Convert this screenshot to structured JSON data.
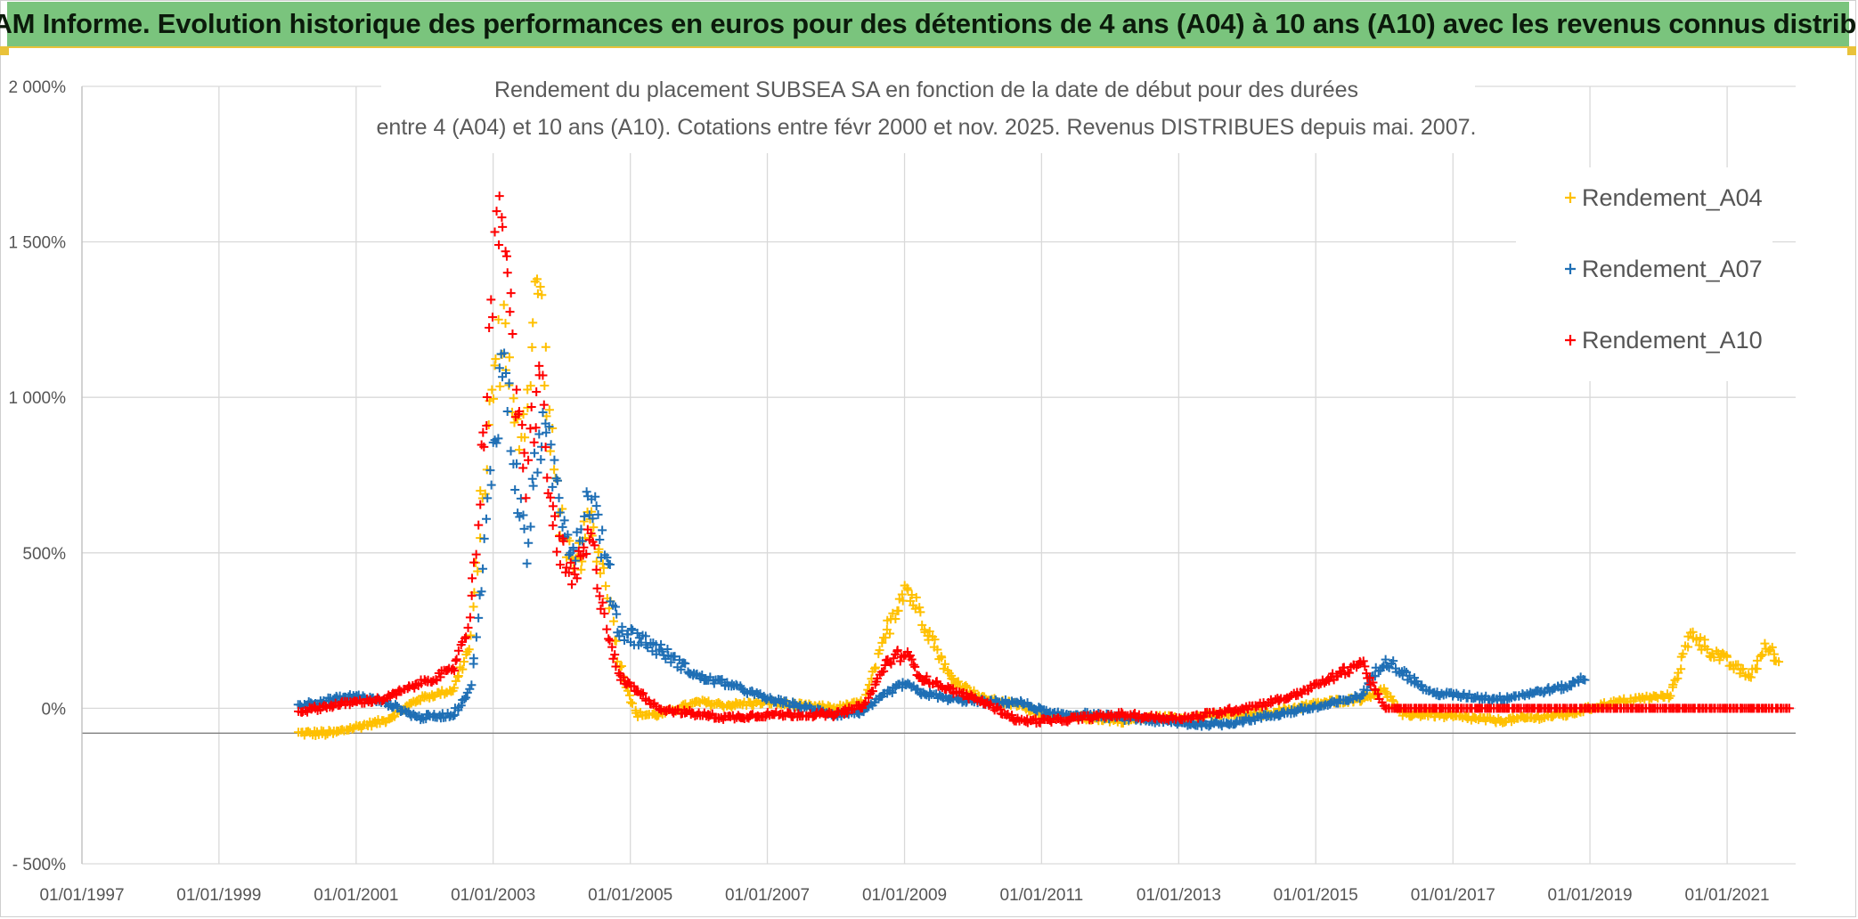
{
  "banner": {
    "title": "ADAM Informe. Evolution historique des performances en euros pour des détentions de 4 ans (A04) à 10 ans (A10) avec les revenus connus distribués"
  },
  "chart_data": {
    "type": "scatter",
    "title_line1": "Rendement du placement SUBSEA SA en fonction de la date de début pour des durées",
    "title_line2": "entre 4 (A04) et 10 ans (A10). Cotations entre févr 2000 et nov. 2025. Revenus DISTRIBUES depuis mai. 2007.",
    "xlabel": "",
    "ylabel": "",
    "x_ticks": [
      "01/01/1997",
      "01/01/1999",
      "01/01/2001",
      "01/01/2003",
      "01/01/2005",
      "01/01/2007",
      "01/01/2009",
      "01/01/2011",
      "01/01/2013",
      "01/01/2015",
      "01/01/2017",
      "01/01/2019",
      "01/01/2021"
    ],
    "y_ticks": [
      "- 500%",
      "0%",
      "500%",
      "1 000%",
      "1 500%",
      "2 000%"
    ],
    "y_tick_values": [
      -500,
      0,
      500,
      1000,
      1500,
      2000
    ],
    "xlim": [
      "1997-01-01",
      "2022-01-01"
    ],
    "ylim": [
      -500,
      2000
    ],
    "grid": true,
    "legend_position": "top-right",
    "marker": "+",
    "series": [
      {
        "name": "Rendement_A04",
        "color": "#ffc000",
        "x_start": "2000-03-01",
        "x_end": "2021-10-01",
        "points": [
          [
            "2000-03-01",
            -80
          ],
          [
            "2000-09-01",
            -80
          ],
          [
            "2001-01-01",
            -60
          ],
          [
            "2001-06-01",
            -40
          ],
          [
            "2001-12-01",
            30
          ],
          [
            "2002-06-01",
            60
          ],
          [
            "2002-09-01",
            200
          ],
          [
            "2002-11-01",
            650
          ],
          [
            "2003-01-01",
            1050
          ],
          [
            "2003-03-01",
            1250
          ],
          [
            "2003-05-01",
            850
          ],
          [
            "2003-07-01",
            1000
          ],
          [
            "2003-09-01",
            1400
          ],
          [
            "2003-11-01",
            850
          ],
          [
            "2004-01-01",
            600
          ],
          [
            "2004-03-01",
            420
          ],
          [
            "2004-06-01",
            600
          ],
          [
            "2004-09-01",
            400
          ],
          [
            "2004-11-01",
            150
          ],
          [
            "2005-02-01",
            -20
          ],
          [
            "2005-06-01",
            -20
          ],
          [
            "2006-01-01",
            20
          ],
          [
            "2006-06-01",
            10
          ],
          [
            "2007-01-01",
            20
          ],
          [
            "2007-06-01",
            10
          ],
          [
            "2008-01-01",
            0
          ],
          [
            "2008-06-01",
            20
          ],
          [
            "2008-10-01",
            250
          ],
          [
            "2009-01-01",
            400
          ],
          [
            "2009-04-01",
            300
          ],
          [
            "2009-09-01",
            100
          ],
          [
            "2010-03-01",
            30
          ],
          [
            "2010-09-01",
            10
          ],
          [
            "2011-03-01",
            -30
          ],
          [
            "2011-09-01",
            -30
          ],
          [
            "2012-03-01",
            -40
          ],
          [
            "2012-09-01",
            -30
          ],
          [
            "2013-03-01",
            -30
          ],
          [
            "2013-09-01",
            -20
          ],
          [
            "2014-03-01",
            -20
          ],
          [
            "2014-09-01",
            0
          ],
          [
            "2015-03-01",
            20
          ],
          [
            "2015-09-01",
            30
          ],
          [
            "2016-01-01",
            60
          ],
          [
            "2016-04-01",
            -20
          ],
          [
            "2016-09-01",
            -20
          ],
          [
            "2017-03-01",
            -30
          ],
          [
            "2017-09-01",
            -40
          ],
          [
            "2018-03-01",
            -30
          ],
          [
            "2018-09-01",
            -20
          ],
          [
            "2019-03-01",
            10
          ],
          [
            "2019-09-01",
            30
          ],
          [
            "2020-03-01",
            40
          ],
          [
            "2020-07-01",
            250
          ],
          [
            "2020-09-01",
            200
          ],
          [
            "2021-01-01",
            150
          ],
          [
            "2021-05-01",
            100
          ],
          [
            "2021-08-01",
            200
          ],
          [
            "2021-10-01",
            150
          ]
        ]
      },
      {
        "name": "Rendement_A07",
        "color": "#1f6fb5",
        "x_start": "2000-03-01",
        "x_end": "2018-12-01",
        "points": [
          [
            "2000-03-01",
            10
          ],
          [
            "2000-09-01",
            30
          ],
          [
            "2001-01-01",
            40
          ],
          [
            "2001-06-01",
            20
          ],
          [
            "2001-12-01",
            -30
          ],
          [
            "2002-06-01",
            -20
          ],
          [
            "2002-09-01",
            60
          ],
          [
            "2002-11-01",
            400
          ],
          [
            "2003-01-01",
            850
          ],
          [
            "2003-03-01",
            1150
          ],
          [
            "2003-05-01",
            750
          ],
          [
            "2003-07-01",
            500
          ],
          [
            "2003-09-01",
            900
          ],
          [
            "2003-11-01",
            800
          ],
          [
            "2004-01-01",
            650
          ],
          [
            "2004-03-01",
            500
          ],
          [
            "2004-06-01",
            700
          ],
          [
            "2004-09-01",
            450
          ],
          [
            "2004-11-01",
            250
          ],
          [
            "2005-02-01",
            230
          ],
          [
            "2005-06-01",
            190
          ],
          [
            "2006-01-01",
            100
          ],
          [
            "2006-06-01",
            80
          ],
          [
            "2007-01-01",
            30
          ],
          [
            "2007-06-01",
            10
          ],
          [
            "2008-01-01",
            -20
          ],
          [
            "2008-06-01",
            -10
          ],
          [
            "2008-10-01",
            50
          ],
          [
            "2009-01-01",
            80
          ],
          [
            "2009-04-01",
            50
          ],
          [
            "2009-09-01",
            30
          ],
          [
            "2010-03-01",
            20
          ],
          [
            "2010-09-01",
            20
          ],
          [
            "2011-03-01",
            -20
          ],
          [
            "2011-09-01",
            -20
          ],
          [
            "2012-03-01",
            -30
          ],
          [
            "2012-09-01",
            -40
          ],
          [
            "2013-03-01",
            -50
          ],
          [
            "2013-09-01",
            -50
          ],
          [
            "2014-03-01",
            -30
          ],
          [
            "2014-09-01",
            -10
          ],
          [
            "2015-03-01",
            10
          ],
          [
            "2015-09-01",
            40
          ],
          [
            "2016-01-01",
            160
          ],
          [
            "2016-04-01",
            120
          ],
          [
            "2016-09-01",
            50
          ],
          [
            "2017-03-01",
            40
          ],
          [
            "2017-09-01",
            30
          ],
          [
            "2018-03-01",
            50
          ],
          [
            "2018-09-01",
            70
          ],
          [
            "2018-12-01",
            100
          ]
        ]
      },
      {
        "name": "Rendement_A10",
        "color": "#ff0000",
        "x_start": "2000-03-01",
        "x_end": "2021-12-01",
        "points": [
          [
            "2000-03-01",
            -10
          ],
          [
            "2000-09-01",
            10
          ],
          [
            "2001-01-01",
            20
          ],
          [
            "2001-06-01",
            30
          ],
          [
            "2001-12-01",
            80
          ],
          [
            "2002-06-01",
            120
          ],
          [
            "2002-09-01",
            300
          ],
          [
            "2002-11-01",
            800
          ],
          [
            "2003-01-01",
            1350
          ],
          [
            "2003-03-01",
            1650
          ],
          [
            "2003-05-01",
            950
          ],
          [
            "2003-07-01",
            750
          ],
          [
            "2003-09-01",
            1100
          ],
          [
            "2003-11-01",
            650
          ],
          [
            "2004-01-01",
            500
          ],
          [
            "2004-03-01",
            400
          ],
          [
            "2004-06-01",
            550
          ],
          [
            "2004-09-01",
            250
          ],
          [
            "2004-11-01",
            100
          ],
          [
            "2005-02-01",
            60
          ],
          [
            "2005-06-01",
            0
          ],
          [
            "2006-01-01",
            -20
          ],
          [
            "2006-06-01",
            -30
          ],
          [
            "2007-01-01",
            -20
          ],
          [
            "2007-06-01",
            -20
          ],
          [
            "2008-01-01",
            -20
          ],
          [
            "2008-06-01",
            10
          ],
          [
            "2008-10-01",
            150
          ],
          [
            "2009-01-01",
            180
          ],
          [
            "2009-04-01",
            100
          ],
          [
            "2009-09-01",
            60
          ],
          [
            "2010-03-01",
            20
          ],
          [
            "2010-09-01",
            -40
          ],
          [
            "2011-03-01",
            -40
          ],
          [
            "2011-09-01",
            -30
          ],
          [
            "2012-03-01",
            -20
          ],
          [
            "2012-09-01",
            -30
          ],
          [
            "2013-03-01",
            -30
          ],
          [
            "2013-09-01",
            -10
          ],
          [
            "2014-03-01",
            10
          ],
          [
            "2014-09-01",
            40
          ],
          [
            "2015-03-01",
            90
          ],
          [
            "2015-09-01",
            150
          ],
          [
            "2016-01-01",
            0
          ],
          [
            "2021-12-01",
            0
          ]
        ]
      }
    ]
  }
}
